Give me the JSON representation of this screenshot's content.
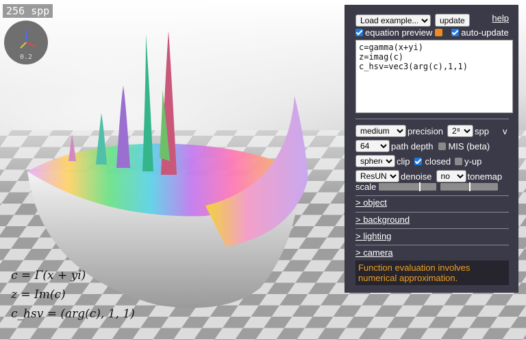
{
  "viewport": {
    "spp_badge": "256 spp",
    "axis_gizmo_value": "0.2",
    "equations": [
      "c = Γ(x + yi)",
      "z = Im(c)",
      "c_hsv = (arg(c), 1, 1)"
    ]
  },
  "panel": {
    "example_select": "Load example...",
    "update_button": "update",
    "help_link": "help",
    "equation_preview_label": "equation preview",
    "equation_preview_checked": true,
    "auto_update_label": "auto-update",
    "auto_update_checked": true,
    "code": "c=gamma(x+yi)\nz=imag(c)\nc_hsv=vec3(arg(c),1,1)",
    "quality_select": "medium",
    "precision_label": "precision",
    "spp_select": "2⁸",
    "spp_label": "spp",
    "v_label": "v",
    "path_depth_select": "64",
    "path_depth_label": "path depth",
    "mis_label": "MIS (beta)",
    "mis_checked": false,
    "clip_select": "sphere",
    "clip_label": "clip",
    "closed_label": "closed",
    "closed_checked": true,
    "y_up_label": "y-up",
    "y_up_checked": false,
    "denoise_select": "ResUNet",
    "denoise_label": "denoise",
    "tonemap_select": "no",
    "tonemap_label": "tonemap",
    "scale_label": "scale",
    "scale_1": 0.7,
    "scale_2": 0.5,
    "sections": [
      "> object",
      "> background",
      "> lighting",
      "> camera"
    ],
    "note": "Function evaluation involves numerical approximation."
  },
  "colors": {
    "panel_bg": "#3b3a48",
    "accent": "#1f7ae0",
    "note_text": "#f0a020"
  }
}
